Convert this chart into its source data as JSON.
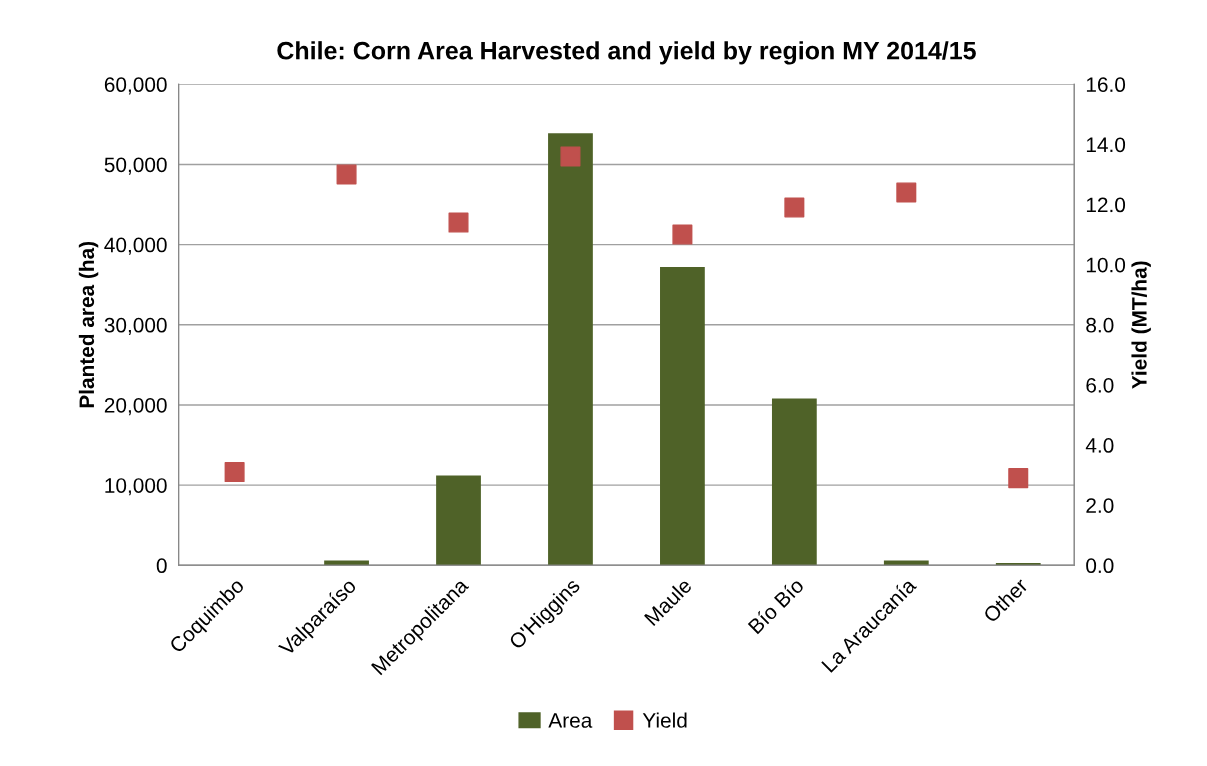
{
  "chart_data": {
    "type": "bar",
    "title": "Chile: Corn Area Harvested and yield by region MY 2014/15",
    "ylabel": "Planted area (ha)",
    "y2label": "Yield (MT/ha)",
    "categories": [
      "Coquimbo",
      "Valparaíso",
      "Metropolitana",
      "O'Higgins",
      "Maule",
      "Bío Bío",
      "La Araucanía",
      "Other"
    ],
    "series": [
      {
        "name": "Area",
        "color": "#4f6228",
        "values": [
          0,
          600,
          11200,
          53900,
          37200,
          20800,
          600,
          300
        ]
      },
      {
        "name": "Yield",
        "type": "scatter",
        "axis": "y2",
        "color": "#c0504d",
        "values": [
          3.1,
          13.0,
          11.4,
          13.6,
          11.0,
          11.9,
          12.4,
          2.9
        ]
      }
    ],
    "ylim": [
      0,
      60000
    ],
    "yticks": [
      {
        "value": 0,
        "label": "0"
      },
      {
        "value": 10000,
        "label": "10,000"
      },
      {
        "value": 20000,
        "label": "20,000"
      },
      {
        "value": 30000,
        "label": "30,000"
      },
      {
        "value": 40000,
        "label": "40,000"
      },
      {
        "value": 50000,
        "label": "50,000"
      },
      {
        "value": 60000,
        "label": "60,000"
      }
    ],
    "y2lim": [
      0,
      16
    ],
    "y2ticks": [
      {
        "value": 0,
        "label": "0.0"
      },
      {
        "value": 2,
        "label": "2.0"
      },
      {
        "value": 4,
        "label": "4.0"
      },
      {
        "value": 6,
        "label": "6.0"
      },
      {
        "value": 8,
        "label": "8.0"
      },
      {
        "value": 10,
        "label": "10.0"
      },
      {
        "value": 12,
        "label": "12.0"
      },
      {
        "value": 14,
        "label": "14.0"
      },
      {
        "value": 16,
        "label": "16.0"
      }
    ],
    "grid": "y",
    "legend": "bottom",
    "marker": "square"
  }
}
